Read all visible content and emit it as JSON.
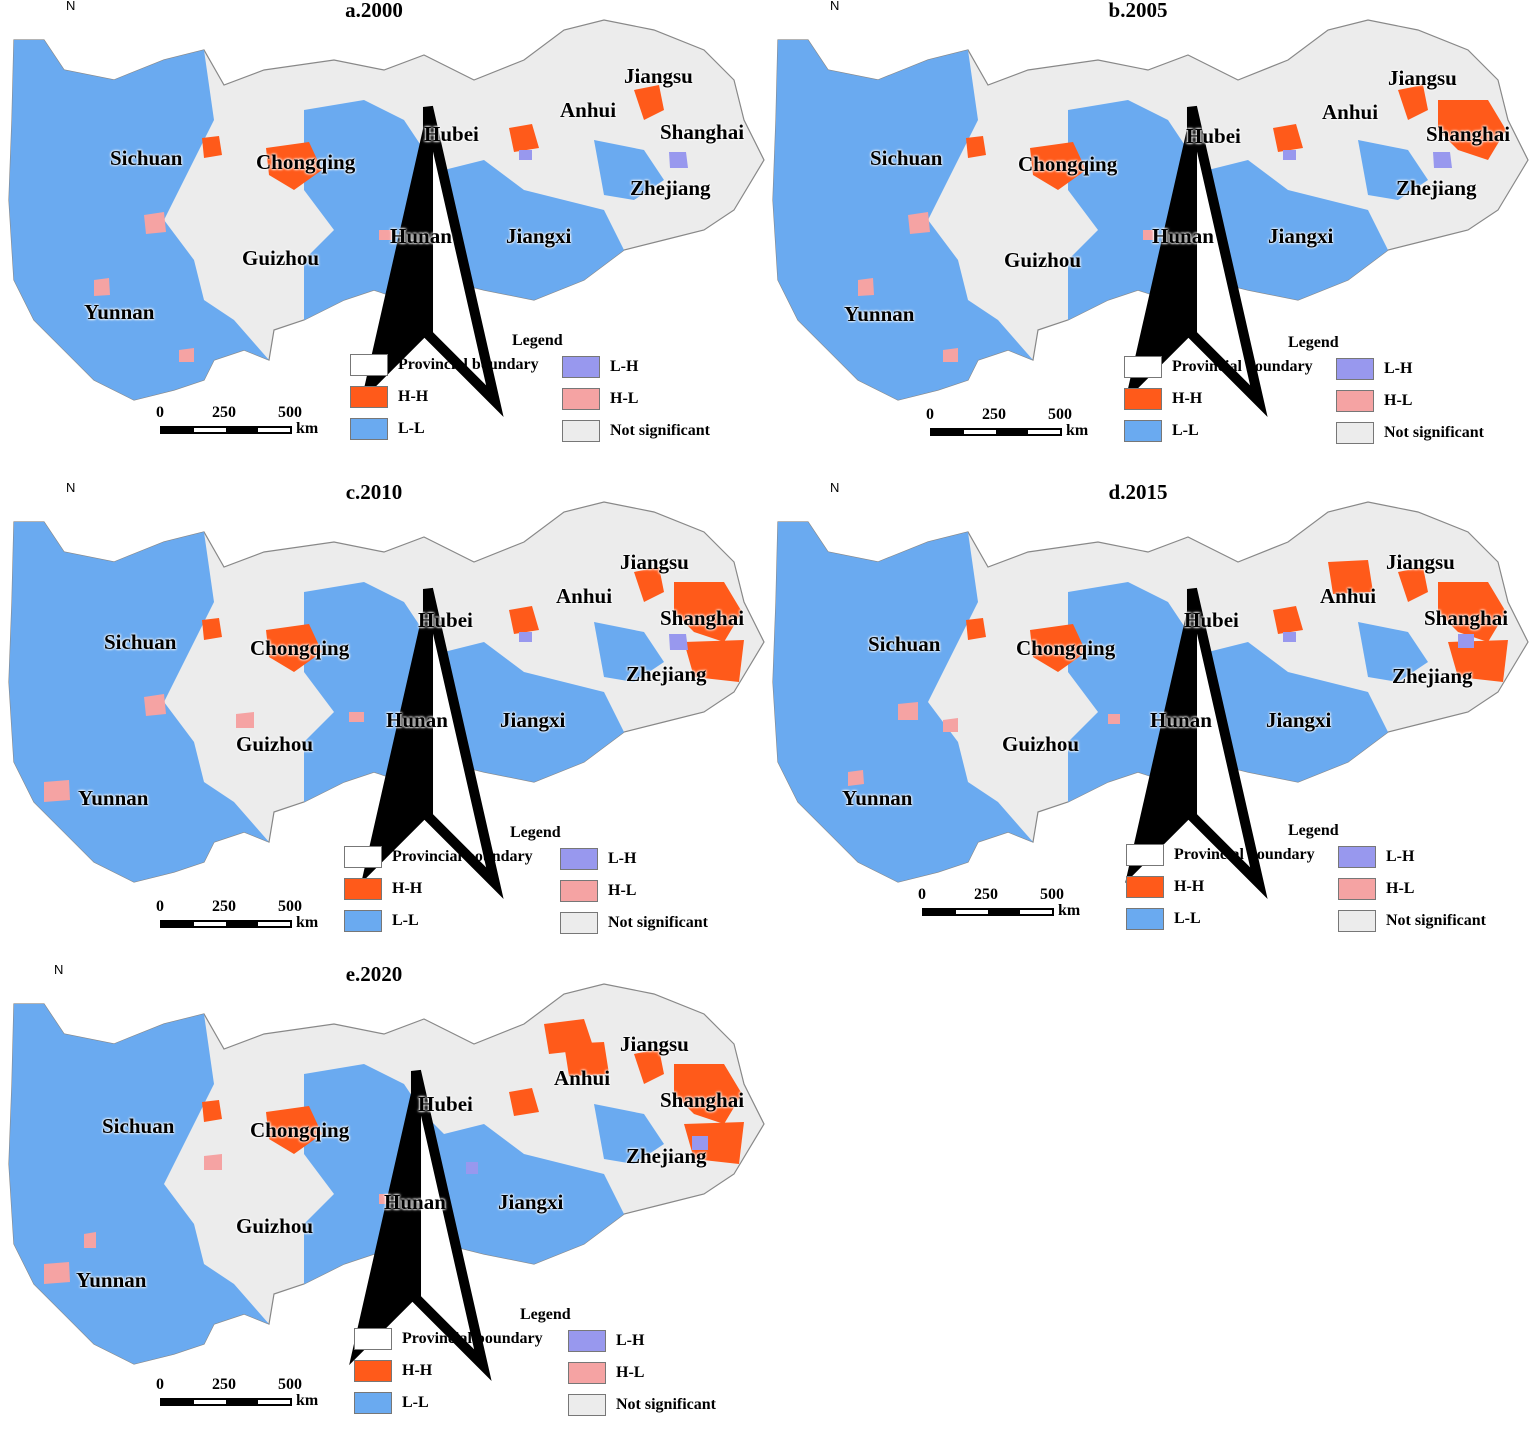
{
  "colors": {
    "HH": "#ff5a1a",
    "LL": "#6aaaf0",
    "LH": "#9898ee",
    "HL": "#f5a3a3",
    "NS": "#ececec",
    "boundary": "#ffffff",
    "outline": "#888888"
  },
  "north_label": "N",
  "legend": {
    "title": "Legend",
    "provincial_boundary": "Provincial boundary",
    "hh": "H-H",
    "ll": "L-L",
    "lh": "L-H",
    "hl": "H-L",
    "not_significant": "Not significant"
  },
  "scale": {
    "zero": "0",
    "mid": "250",
    "max": "500",
    "unit": "km"
  },
  "provinces": [
    "Sichuan",
    "Chongqing",
    "Guizhou",
    "Yunnan",
    "Hubei",
    "Hunan",
    "Jiangxi",
    "Anhui",
    "Jiangsu",
    "Shanghai",
    "Zhejiang"
  ],
  "panels": [
    {
      "title": "a.2000",
      "hh_level": 1
    },
    {
      "title": "b.2005",
      "hh_level": 2
    },
    {
      "title": "c.2010",
      "hh_level": 3
    },
    {
      "title": "d.2015",
      "hh_level": 4
    },
    {
      "title": "e.2020",
      "hh_level": 5
    }
  ]
}
